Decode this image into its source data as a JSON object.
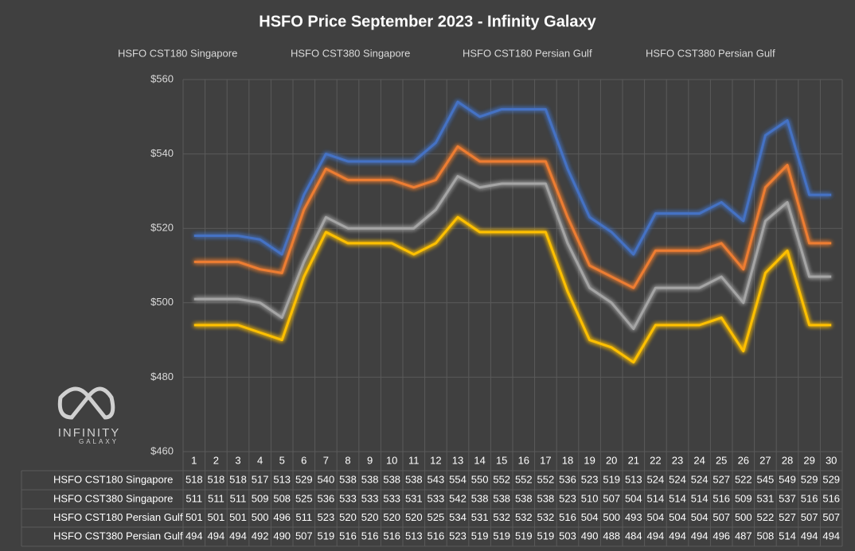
{
  "chart_data": {
    "type": "line",
    "title": "HSFO Price September 2023 - Infinity Galaxy",
    "categories": [
      "1",
      "2",
      "3",
      "4",
      "5",
      "6",
      "7",
      "8",
      "9",
      "10",
      "11",
      "12",
      "13",
      "14",
      "15",
      "16",
      "17",
      "18",
      "19",
      "20",
      "21",
      "22",
      "23",
      "24",
      "25",
      "26",
      "27",
      "28",
      "29",
      "30"
    ],
    "series": [
      {
        "name": "HSFO CST180 Singapore",
        "color": "#4472c4",
        "values": [
          518,
          518,
          518,
          517,
          513,
          529,
          540,
          538,
          538,
          538,
          538,
          543,
          554,
          550,
          552,
          552,
          552,
          536,
          523,
          519,
          513,
          524,
          524,
          524,
          527,
          522,
          545,
          549,
          529,
          529
        ]
      },
      {
        "name": "HSFO CST380 Singapore",
        "color": "#ed7d31",
        "values": [
          511,
          511,
          511,
          509,
          508,
          525,
          536,
          533,
          533,
          533,
          531,
          533,
          542,
          538,
          538,
          538,
          538,
          523,
          510,
          507,
          504,
          514,
          514,
          514,
          516,
          509,
          531,
          537,
          516,
          516
        ]
      },
      {
        "name": "HSFO CST180 Persian Gulf",
        "color": "#a5a5a5",
        "values": [
          501,
          501,
          501,
          500,
          496,
          511,
          523,
          520,
          520,
          520,
          520,
          525,
          534,
          531,
          532,
          532,
          532,
          516,
          504,
          500,
          493,
          504,
          504,
          504,
          507,
          500,
          522,
          527,
          507,
          507
        ]
      },
      {
        "name": "HSFO CST380 Persian Gulf",
        "color": "#ffc000",
        "values": [
          494,
          494,
          494,
          492,
          490,
          507,
          519,
          516,
          516,
          516,
          513,
          516,
          523,
          519,
          519,
          519,
          519,
          503,
          490,
          488,
          484,
          494,
          494,
          494,
          496,
          487,
          508,
          514,
          494,
          494
        ]
      }
    ],
    "ylim": [
      460,
      560
    ],
    "yticks": [
      {
        "value": 460,
        "label": "$460"
      },
      {
        "value": 480,
        "label": "$480"
      },
      {
        "value": 500,
        "label": "$500"
      },
      {
        "value": 520,
        "label": "$520"
      },
      {
        "value": 540,
        "label": "$540"
      },
      {
        "value": 560,
        "label": "$560"
      }
    ],
    "grid": true,
    "legend": "top",
    "annotations": [
      "INFINITY",
      "GALAXY"
    ]
  }
}
